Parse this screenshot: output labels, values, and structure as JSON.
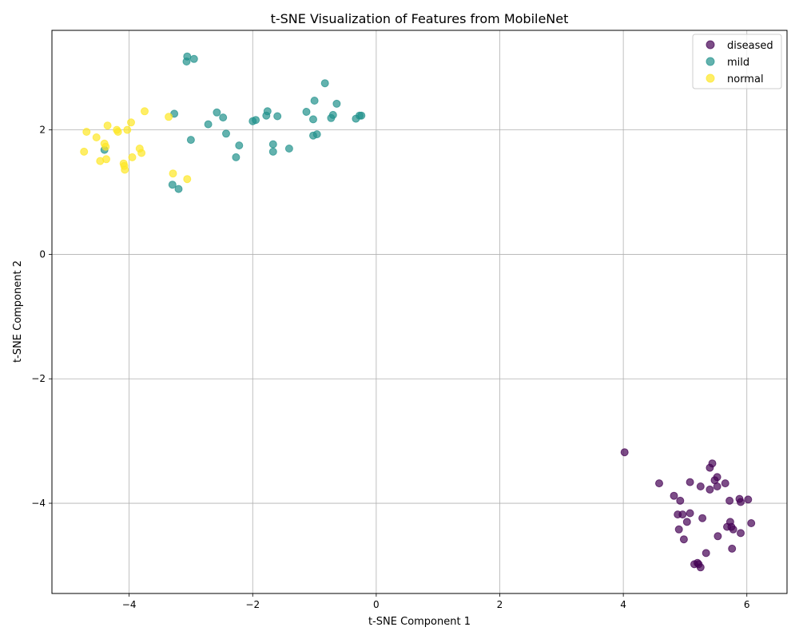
{
  "chart_data": {
    "type": "scatter",
    "title": "t-SNE Visualization of Features from MobileNet",
    "xlabel": "t-SNE Component 1",
    "ylabel": "t-SNE Component 2",
    "xlim": [
      -5.25,
      6.65
    ],
    "ylim": [
      -5.45,
      3.6
    ],
    "xticks": [
      -4,
      -2,
      0,
      2,
      4,
      6
    ],
    "yticks": [
      2,
      0,
      -2,
      -4
    ],
    "xtick_labels": [
      "−4",
      "−2",
      "0",
      "2",
      "4",
      "6"
    ],
    "ytick_labels": [
      "2",
      "0",
      "−2",
      "−4"
    ],
    "grid": true,
    "legend_position": "top-right",
    "series": [
      {
        "name": "diseased",
        "color": "#440154",
        "points": [
          [
            4.02,
            -3.18
          ],
          [
            4.58,
            -3.68
          ],
          [
            4.82,
            -3.88
          ],
          [
            4.88,
            -4.18
          ],
          [
            4.92,
            -3.96
          ],
          [
            4.9,
            -4.42
          ],
          [
            4.96,
            -4.18
          ],
          [
            4.98,
            -4.58
          ],
          [
            5.03,
            -4.3
          ],
          [
            5.08,
            -3.66
          ],
          [
            5.08,
            -4.16
          ],
          [
            5.15,
            -4.98
          ],
          [
            5.2,
            -4.96
          ],
          [
            5.22,
            -4.98
          ],
          [
            5.25,
            -5.03
          ],
          [
            5.25,
            -3.73
          ],
          [
            5.28,
            -4.24
          ],
          [
            5.34,
            -4.8
          ],
          [
            5.4,
            -3.43
          ],
          [
            5.4,
            -3.78
          ],
          [
            5.44,
            -3.36
          ],
          [
            5.48,
            -3.63
          ],
          [
            5.52,
            -3.58
          ],
          [
            5.52,
            -3.73
          ],
          [
            5.53,
            -4.53
          ],
          [
            5.65,
            -3.68
          ],
          [
            5.68,
            -4.38
          ],
          [
            5.72,
            -3.96
          ],
          [
            5.73,
            -4.3
          ],
          [
            5.75,
            -4.38
          ],
          [
            5.76,
            -4.73
          ],
          [
            5.78,
            -4.42
          ],
          [
            5.88,
            -3.93
          ],
          [
            5.9,
            -3.98
          ],
          [
            5.9,
            -4.48
          ],
          [
            6.02,
            -3.94
          ],
          [
            6.07,
            -4.32
          ]
        ]
      },
      {
        "name": "mild",
        "color": "#21918c",
        "points": [
          [
            -4.4,
            1.68
          ],
          [
            -3.3,
            1.12
          ],
          [
            -3.27,
            2.26
          ],
          [
            -3.2,
            1.05
          ],
          [
            -3.06,
            3.18
          ],
          [
            -3.07,
            3.1
          ],
          [
            -3.0,
            1.84
          ],
          [
            -2.95,
            3.14
          ],
          [
            -2.72,
            2.09
          ],
          [
            -2.58,
            2.28
          ],
          [
            -2.48,
            2.2
          ],
          [
            -2.43,
            1.94
          ],
          [
            -2.27,
            1.56
          ],
          [
            -2.22,
            1.75
          ],
          [
            -2.0,
            2.14
          ],
          [
            -1.95,
            2.16
          ],
          [
            -1.78,
            2.23
          ],
          [
            -1.76,
            2.3
          ],
          [
            -1.67,
            1.77
          ],
          [
            -1.67,
            1.65
          ],
          [
            -1.6,
            2.22
          ],
          [
            -1.41,
            1.7
          ],
          [
            -1.13,
            2.29
          ],
          [
            -1.02,
            1.91
          ],
          [
            -1.02,
            2.17
          ],
          [
            -1.0,
            2.47
          ],
          [
            -0.96,
            1.93
          ],
          [
            -0.83,
            2.75
          ],
          [
            -0.73,
            2.19
          ],
          [
            -0.7,
            2.24
          ],
          [
            -0.64,
            2.42
          ],
          [
            -0.33,
            2.18
          ],
          [
            -0.27,
            2.23
          ],
          [
            -0.24,
            2.23
          ]
        ]
      },
      {
        "name": "normal",
        "color": "#fde725",
        "points": [
          [
            -4.73,
            1.65
          ],
          [
            -4.69,
            1.97
          ],
          [
            -4.53,
            1.88
          ],
          [
            -4.47,
            1.5
          ],
          [
            -4.4,
            1.78
          ],
          [
            -4.38,
            1.73
          ],
          [
            -4.37,
            1.53
          ],
          [
            -4.35,
            2.07
          ],
          [
            -4.2,
            2.0
          ],
          [
            -4.18,
            1.97
          ],
          [
            -4.09,
            1.46
          ],
          [
            -4.08,
            1.42
          ],
          [
            -4.07,
            1.36
          ],
          [
            -4.03,
            2.0
          ],
          [
            -3.97,
            2.12
          ],
          [
            -3.95,
            1.56
          ],
          [
            -3.83,
            1.7
          ],
          [
            -3.8,
            1.63
          ],
          [
            -3.75,
            2.3
          ],
          [
            -3.36,
            2.21
          ],
          [
            -3.29,
            1.3
          ],
          [
            -3.06,
            1.21
          ]
        ]
      }
    ]
  }
}
